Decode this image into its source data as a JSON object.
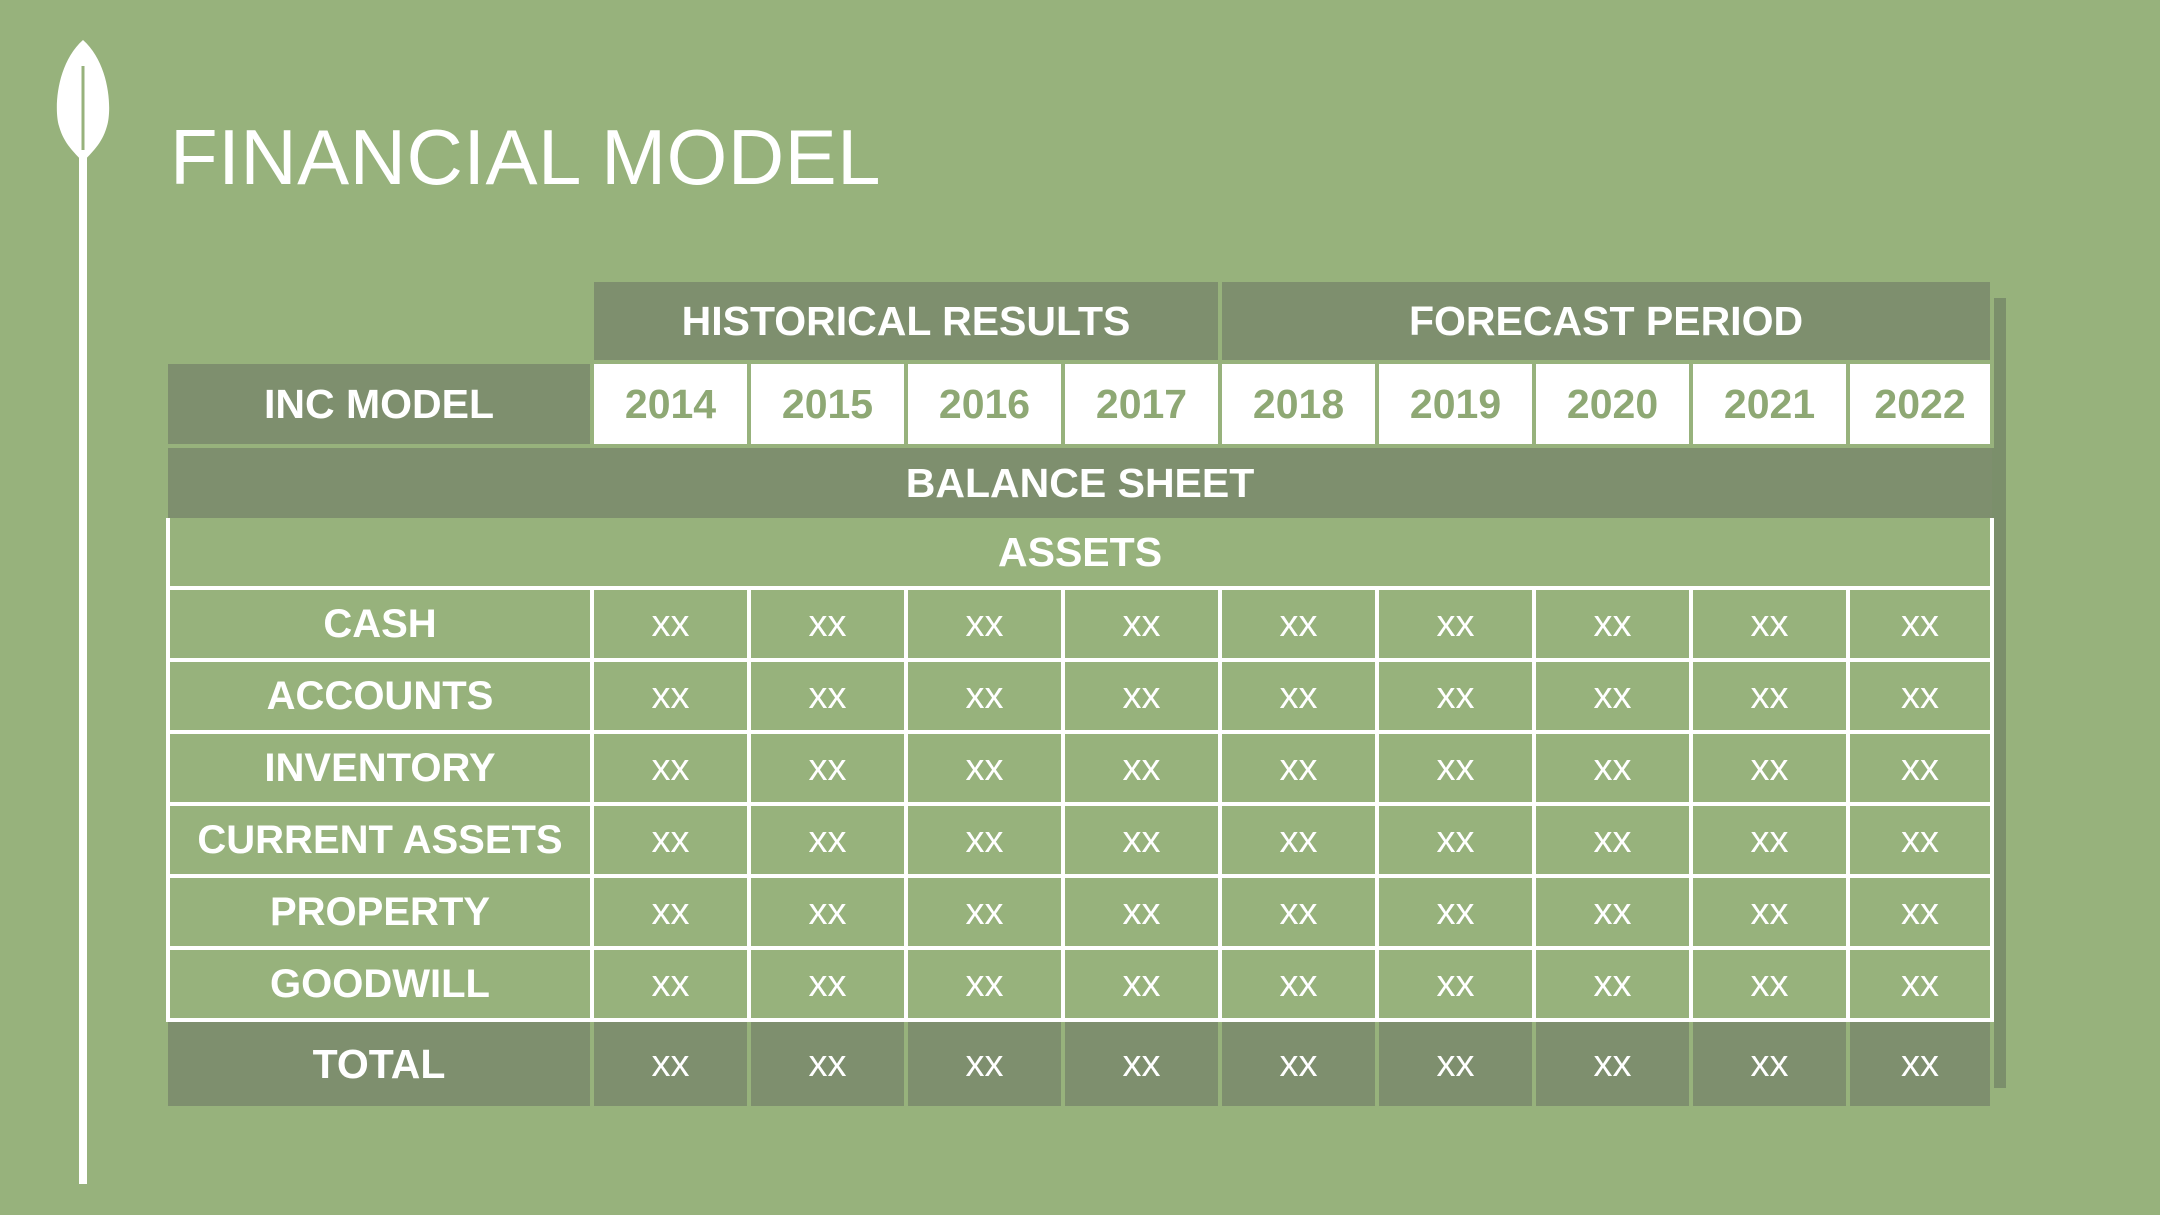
{
  "title": "FINANCIAL MODEL",
  "icons": {
    "decoration": "leaf-icon"
  },
  "colors": {
    "background": "#97b27c",
    "header_fill": "#7e8f6e",
    "year_text": "#8ea874",
    "text": "#ffffff"
  },
  "table": {
    "historical_label": "HISTORICAL RESULTS",
    "forecast_label": "FORECAST PERIOD",
    "model_label": "INC MODEL",
    "years": [
      "2014",
      "2015",
      "2016",
      "2017",
      "2018",
      "2019",
      "2020",
      "2021",
      "2022"
    ],
    "balance_sheet_label": "BALANCE SHEET",
    "assets_label": "ASSETS",
    "rows": [
      {
        "label": "CASH",
        "values": [
          "xx",
          "xx",
          "xx",
          "xx",
          "xx",
          "xx",
          "xx",
          "xx",
          "xx"
        ]
      },
      {
        "label": "ACCOUNTS",
        "values": [
          "xx",
          "xx",
          "xx",
          "xx",
          "xx",
          "xx",
          "xx",
          "xx",
          "xx"
        ]
      },
      {
        "label": "INVENTORY",
        "values": [
          "xx",
          "xx",
          "xx",
          "xx",
          "xx",
          "xx",
          "xx",
          "xx",
          "xx"
        ]
      },
      {
        "label": "CURRENT ASSETS",
        "values": [
          "xx",
          "xx",
          "xx",
          "xx",
          "xx",
          "xx",
          "xx",
          "xx",
          "xx"
        ]
      },
      {
        "label": "PROPERTY",
        "values": [
          "xx",
          "xx",
          "xx",
          "xx",
          "xx",
          "xx",
          "xx",
          "xx",
          "xx"
        ]
      },
      {
        "label": "GOODWILL",
        "values": [
          "xx",
          "xx",
          "xx",
          "xx",
          "xx",
          "xx",
          "xx",
          "xx",
          "xx"
        ]
      }
    ],
    "total": {
      "label": "TOTAL",
      "values": [
        "xx",
        "xx",
        "xx",
        "xx",
        "xx",
        "xx",
        "xx",
        "xx",
        "xx"
      ]
    }
  }
}
